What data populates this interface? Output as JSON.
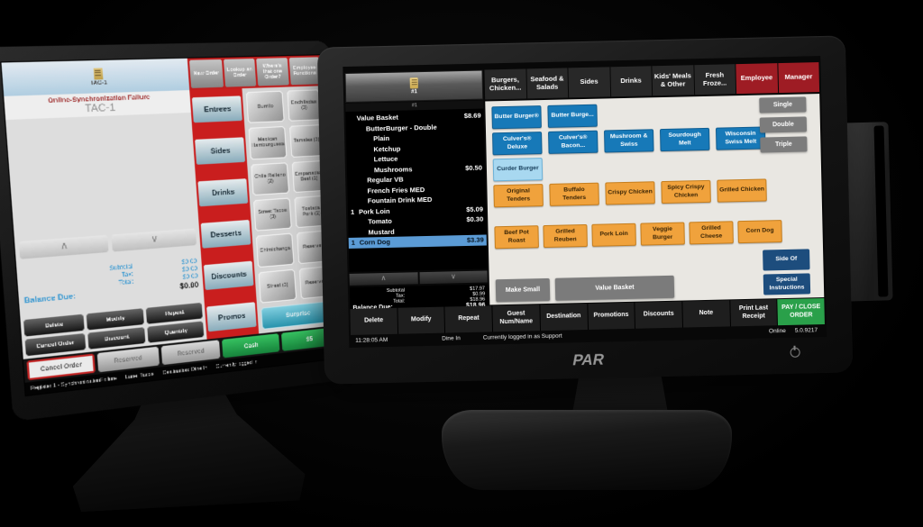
{
  "left_terminal": {
    "check_tab_label": "TAC-1",
    "alert_message": "Online-Synchronization Failure",
    "station_name": "TAC-1",
    "tabs": [
      "New Order",
      "Lookup an Order",
      "Where's that one Order?",
      "Employee Functions"
    ],
    "categories": [
      "Entrees",
      "Sides",
      "Drinks",
      "Desserts",
      "Discounts",
      "Promos"
    ],
    "grid_buttons": [
      "Burrito",
      "Enchiladas (3)",
      "Mexican Hamburguesa",
      "Tamales (3)",
      "Chile Relleno (2)",
      "Empanadas Beef (2)",
      "Street Tacos (3)",
      "Tostada Pork (2)",
      "Chimichanga",
      "Reserved",
      "Street (3)",
      "Reserved"
    ],
    "surprise_button": "Surprise",
    "totals": [
      {
        "label": "Subtotal",
        "value": "$0.00"
      },
      {
        "label": "Tax:",
        "value": "$0.00"
      },
      {
        "label": "Total:",
        "value": "$0.00"
      },
      {
        "label": "Balance Due:",
        "value": "$0.00",
        "cls": "bold"
      }
    ],
    "action_buttons": [
      "Delete",
      "Modify",
      "Repeat",
      "Cancel Order",
      "Discount",
      "Quantity"
    ],
    "bottom_buttons": [
      {
        "label": "Cancel Order",
        "cls": "white"
      },
      {
        "label": "Reserved",
        "cls": "silver"
      },
      {
        "label": "Reserved",
        "cls": "silver"
      },
      {
        "label": "Cash",
        "cls": "green"
      },
      {
        "label": "$5",
        "cls": "green"
      }
    ],
    "status_segments": [
      "Register 1 - SynchronizationFailure",
      "Lane: Tacos",
      "Destination: Dine In",
      "Currently logged in"
    ]
  },
  "right_terminal": {
    "brand": "PAR",
    "order_panel": {
      "check_label": "#1",
      "check_sublabel": "#1",
      "items": [
        {
          "qty": "",
          "name": "Value Basket",
          "price": "$8.69",
          "ind": "i0"
        },
        {
          "qty": "",
          "name": "ButterBurger - Double",
          "price": "",
          "ind": "i1"
        },
        {
          "qty": "",
          "name": "Plain",
          "price": "",
          "ind": "i2"
        },
        {
          "qty": "",
          "name": "Ketchup",
          "price": "",
          "ind": "i2"
        },
        {
          "qty": "",
          "name": "Lettuce",
          "price": "",
          "ind": "i2"
        },
        {
          "qty": "",
          "name": "Mushrooms",
          "price": "$0.50",
          "ind": "i2"
        },
        {
          "qty": "",
          "name": "Regular VB",
          "price": "",
          "ind": "i1"
        },
        {
          "qty": "",
          "name": "French Fries MED",
          "price": "",
          "ind": "i1"
        },
        {
          "qty": "",
          "name": "Fountain Drink MED",
          "price": "",
          "ind": "i1"
        },
        {
          "qty": "1",
          "name": "Pork Loin",
          "price": "$5.09",
          "ind": "i0"
        },
        {
          "qty": "",
          "name": "Tomato",
          "price": "$0.30",
          "ind": "i1"
        },
        {
          "qty": "",
          "name": "Mustard",
          "price": "",
          "ind": "i1"
        },
        {
          "qty": "1",
          "name": "Corn Dog",
          "price": "$3.39",
          "ind": "i0",
          "cls": "sel"
        }
      ],
      "totals": [
        {
          "label": "Subtotal",
          "value": "$17.97"
        },
        {
          "label": "Tax:",
          "value": "$0.99"
        },
        {
          "label": "Total:",
          "value": "$18.96"
        },
        {
          "label": "Balance Due:",
          "value": "$18.96",
          "cls": "bold"
        }
      ]
    },
    "tabs": [
      {
        "label": "Burgers, Chicken..."
      },
      {
        "label": "Seafood & Salads"
      },
      {
        "label": "Sides"
      },
      {
        "label": "Drinks"
      },
      {
        "label": "Kids' Meals & Other"
      },
      {
        "label": "Fresh Froze..."
      },
      {
        "label": "Employee",
        "cls": "red"
      },
      {
        "label": "Manager",
        "cls": "red"
      }
    ],
    "menu_rows": [
      {
        "buttons": [
          {
            "label": "Butter Burger®",
            "style": "blue"
          },
          {
            "label": "Butter Burge...",
            "style": "blue"
          }
        ]
      },
      {
        "buttons": [
          {
            "label": "Culver's® Deluxe",
            "style": "blue"
          },
          {
            "label": "Culver's® Bacon...",
            "style": "blue"
          },
          {
            "label": "Mushroom & Swiss",
            "style": "blue"
          },
          {
            "label": "Sourdough Melt",
            "style": "blue"
          },
          {
            "label": "Wisconsin Swiss Melt",
            "style": "blue"
          }
        ]
      },
      {
        "buttons": [
          {
            "label": "Curder Burger",
            "style": "lightblue"
          }
        ]
      },
      {
        "buttons": [
          {
            "label": "Original Tenders",
            "style": "orange"
          },
          {
            "label": "Buffalo Tenders",
            "style": "orange"
          },
          {
            "label": "Crispy Chicken",
            "style": "orange"
          },
          {
            "label": "Spicy Crispy Chicken",
            "style": "orange"
          },
          {
            "label": "Grilled Chicken",
            "style": "orange"
          }
        ]
      },
      {
        "cls": "gap",
        "buttons": [
          {
            "label": "Beef Pot Roast",
            "style": "orange"
          },
          {
            "label": "Grilled Reuben",
            "style": "orange"
          },
          {
            "label": "Pork Loin",
            "style": "orange"
          },
          {
            "label": "Veggie Burger",
            "style": "orange"
          },
          {
            "label": "Grilled Cheese",
            "style": "orange"
          },
          {
            "label": "Corn Dog",
            "style": "orange"
          }
        ]
      }
    ],
    "size_buttons": [
      "Single",
      "Double",
      "Triple"
    ],
    "side_buttons": [
      "Side Of",
      "Special Instructions"
    ],
    "footer_buttons": [
      {
        "label": "Make Small",
        "cls": "fsm"
      },
      {
        "label": "Value Basket",
        "cls": "fwide"
      }
    ],
    "bottom_row": [
      {
        "label": "Delete"
      },
      {
        "label": "Modify"
      },
      {
        "label": "Repeat"
      },
      {
        "label": "Guest Num/Name"
      },
      {
        "label": "Destination"
      },
      {
        "label": "Promotions"
      },
      {
        "label": "Discounts"
      },
      {
        "label": "Note"
      },
      {
        "label": "Print Last Receipt"
      },
      {
        "label": "PAY / CLOSE ORDER",
        "cls": "green"
      }
    ],
    "status_bar": {
      "time": "11:28:05 AM",
      "destination": "Dine In",
      "login": "Currently logged in as Support",
      "online_status": "Online",
      "version": "5.0.9217"
    }
  },
  "icons": {
    "scroll_up": "∧",
    "scroll_down": "∨"
  },
  "colors": {
    "menu_blue": "#1779b8",
    "menu_lightblue": "#a8d8f0",
    "menu_orange": "#f0a23c",
    "pay_green": "#2aa04a",
    "tab_red": "#9e1c24",
    "selected_row_blue": "#5b9bd5",
    "alert_red": "#a83434",
    "surprise_teal": "#2a9ab5"
  }
}
